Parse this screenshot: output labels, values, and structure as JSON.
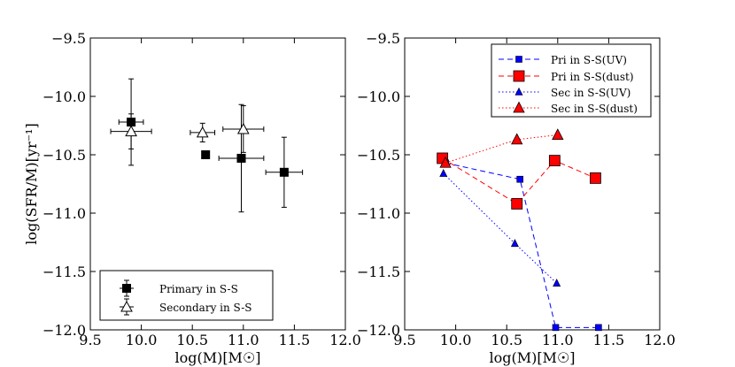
{
  "chart_data": [
    {
      "type": "scatter",
      "title": "",
      "xlabel": "log(M)[M☉]",
      "ylabel": "log(SFR/M)[yr⁻¹]",
      "xlim": [
        9.5,
        12.0
      ],
      "ylim": [
        -12.0,
        -9.5
      ],
      "xticks": [
        "9.5",
        "10.0",
        "10.5",
        "11.0",
        "11.5",
        "12.0"
      ],
      "yticks": [
        "-9.5",
        "-10.0",
        "-10.5",
        "-11.0",
        "-11.5",
        "-12.0"
      ],
      "legend_position": "bottom-left",
      "series": [
        {
          "name": "Primary in S-S",
          "marker": "filled-square",
          "color": "#000000",
          "points": [
            {
              "x": 9.9,
              "y": -10.22,
              "xerr": 0.12,
              "yerr": 0.37
            },
            {
              "x": 10.63,
              "y": -10.5
            },
            {
              "x": 10.98,
              "y": -10.53,
              "xerr": 0.22,
              "yerr": 0.46
            },
            {
              "x": 11.4,
              "y": -10.65,
              "xerr": 0.18,
              "yerr": 0.3
            }
          ]
        },
        {
          "name": "Secondary in S-S",
          "marker": "open-triangle",
          "color": "#000000",
          "points": [
            {
              "x": 9.9,
              "y": -10.3,
              "xerr": 0.2,
              "yerr": 0.15
            },
            {
              "x": 10.6,
              "y": -10.31,
              "xerr": 0.12,
              "yerr": 0.08
            },
            {
              "x": 11.0,
              "y": -10.28,
              "xerr": 0.2,
              "yerr": 0.2
            }
          ]
        }
      ]
    },
    {
      "type": "line",
      "title": "",
      "xlabel": "log(M)[M☉]",
      "ylabel": "",
      "xlim": [
        9.5,
        12.0
      ],
      "ylim": [
        -12.0,
        -9.5
      ],
      "xticks": [
        "9.5",
        "10.0",
        "10.5",
        "11.0",
        "11.5",
        "12.0"
      ],
      "yticks": [
        "-9.5",
        "-10.0",
        "-10.5",
        "-11.0",
        "-11.5",
        "-12.0"
      ],
      "legend_position": "top-right",
      "series": [
        {
          "name": "Pri in S-S(UV)",
          "color": "#0000ff",
          "line": "dashed",
          "marker": "small-square",
          "points": [
            {
              "x": 9.9,
              "y": -10.57
            },
            {
              "x": 10.63,
              "y": -10.71
            },
            {
              "x": 10.98,
              "y": -11.98
            },
            {
              "x": 11.4,
              "y": -11.98
            }
          ]
        },
        {
          "name": "Pri in S-S(dust)",
          "color": "#ff0000",
          "line": "dashed",
          "marker": "large-square",
          "points": [
            {
              "x": 9.87,
              "y": -10.53
            },
            {
              "x": 10.6,
              "y": -10.92
            },
            {
              "x": 10.97,
              "y": -10.55
            },
            {
              "x": 11.37,
              "y": -10.7
            }
          ]
        },
        {
          "name": "Sec in S-S(UV)",
          "color": "#0000ff",
          "line": "dotted",
          "marker": "small-triangle",
          "points": [
            {
              "x": 9.88,
              "y": -10.66
            },
            {
              "x": 10.58,
              "y": -11.26
            },
            {
              "x": 10.99,
              "y": -11.6
            }
          ]
        },
        {
          "name": "Sec in S-S(dust)",
          "color": "#ff0000",
          "line": "dotted",
          "marker": "large-triangle",
          "points": [
            {
              "x": 9.9,
              "y": -10.57
            },
            {
              "x": 10.6,
              "y": -10.37
            },
            {
              "x": 11.0,
              "y": -10.33
            }
          ]
        }
      ]
    }
  ]
}
